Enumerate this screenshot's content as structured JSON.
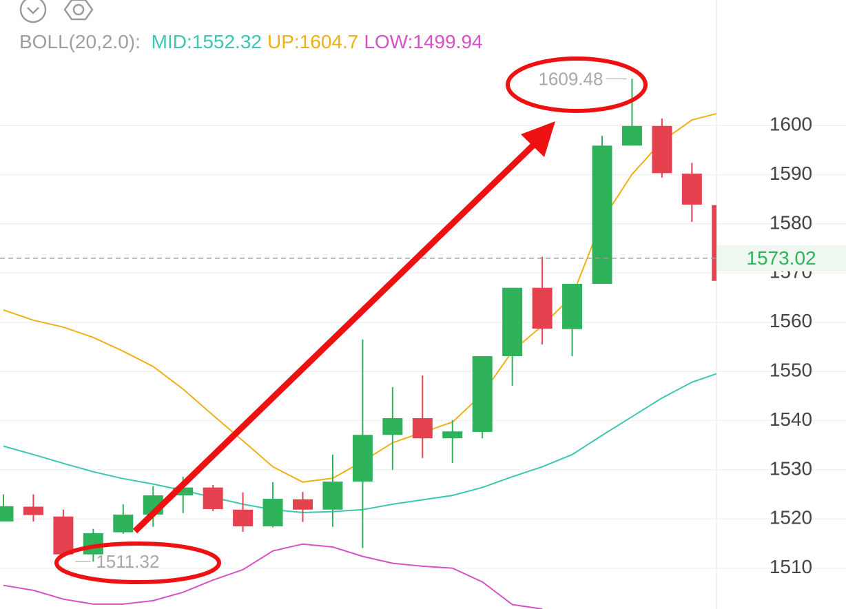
{
  "chart_data": {
    "type": "candlestick",
    "indicator_label": "BOLL(20,2.0):",
    "categories": [
      null,
      null,
      null,
      null,
      null,
      null,
      null,
      null,
      null,
      null,
      null,
      null,
      null,
      null,
      null,
      null,
      null,
      null,
      null,
      null,
      null,
      null,
      null,
      null,
      null
    ],
    "open": [
      1519.5,
      1522.5,
      1520.5,
      1512.8,
      1517.3,
      1520.9,
      1524.8,
      1526.4,
      1521.9,
      1518.5,
      1524.0,
      1521.9,
      1527.6,
      1537.1,
      1540.5,
      1536.4,
      1537.7,
      1553.1,
      1567.0,
      1558.6,
      1567.8,
      1595.9,
      1599.9,
      1590.2,
      1583.8
    ],
    "high": [
      1525.0,
      1525.0,
      1521.9,
      1518.0,
      1523.0,
      1526.7,
      1528.6,
      1526.9,
      1525.4,
      1527.5,
      1525.5,
      1533.1,
      1556.5,
      1546.8,
      1549.2,
      1540.1,
      1553.1,
      1567.0,
      1573.3,
      1567.8,
      1597.9,
      1609.48,
      1601.4,
      1592.4,
      1583.8
    ],
    "low": [
      1519.5,
      1519.5,
      1512.8,
      1511.32,
      1517.0,
      1518.4,
      1521.2,
      1521.6,
      1517.4,
      1518.3,
      1519.4,
      1518.4,
      1514.1,
      1530.0,
      1532.4,
      1531.4,
      1536.4,
      1547.1,
      1555.5,
      1553.1,
      1567.8,
      1595.9,
      1589.4,
      1580.4,
      1568.4
    ],
    "close": [
      1522.6,
      1520.8,
      1512.8,
      1517.1,
      1520.9,
      1524.8,
      1526.4,
      1522.0,
      1518.5,
      1524.1,
      1521.9,
      1527.6,
      1537.1,
      1540.5,
      1536.4,
      1537.8,
      1553.1,
      1567.0,
      1558.7,
      1567.8,
      1595.9,
      1599.9,
      1590.3,
      1583.9,
      1568.4
    ],
    "up_color": "#2fb35a",
    "down_color": "#e5414f",
    "series": [
      {
        "name": "MID:",
        "last": 1552.32,
        "color": "#3cc6b1",
        "values": [
          1534.8,
          1533.1,
          1531.3,
          1529.6,
          1528.2,
          1527.1,
          1525.8,
          1524.4,
          1523.0,
          1521.9,
          1521.3,
          1521.5,
          1521.9,
          1523.0,
          1523.9,
          1524.8,
          1526.4,
          1528.6,
          1530.6,
          1533.1,
          1537.0,
          1540.8,
          1544.6,
          1547.8,
          1549.9
        ]
      },
      {
        "name": "UP:",
        "last": 1604.7,
        "color": "#eeb014",
        "values": [
          1562.5,
          1560.4,
          1559.0,
          1556.9,
          1554.1,
          1551.0,
          1546.4,
          1541.1,
          1535.9,
          1530.6,
          1527.5,
          1528.3,
          1531.7,
          1535.5,
          1537.6,
          1539.7,
          1545.4,
          1554.1,
          1559.3,
          1565.3,
          1580.7,
          1590.1,
          1596.8,
          1601.1,
          1602.7
        ]
      },
      {
        "name": "LOW:",
        "last": 1499.94,
        "color": "#d452c5",
        "values": [
          1506.5,
          1505.5,
          1503.7,
          1502.7,
          1502.7,
          1503.4,
          1505.1,
          1507.6,
          1509.7,
          1513.5,
          1514.9,
          1514.3,
          1512.4,
          1511.0,
          1510.4,
          1510.0,
          1507.2,
          1502.6,
          1501.7,
          null,
          null,
          null,
          null,
          null,
          null
        ]
      }
    ],
    "max_label": 1609.48,
    "min_label": 1511.32,
    "last_price": 1573.02,
    "ylim": [
      1501.7,
      1625.5
    ],
    "yticks": [
      1510,
      1520,
      1530,
      1540,
      1550,
      1560,
      1570,
      1580,
      1590,
      1600
    ],
    "grid": true
  }
}
